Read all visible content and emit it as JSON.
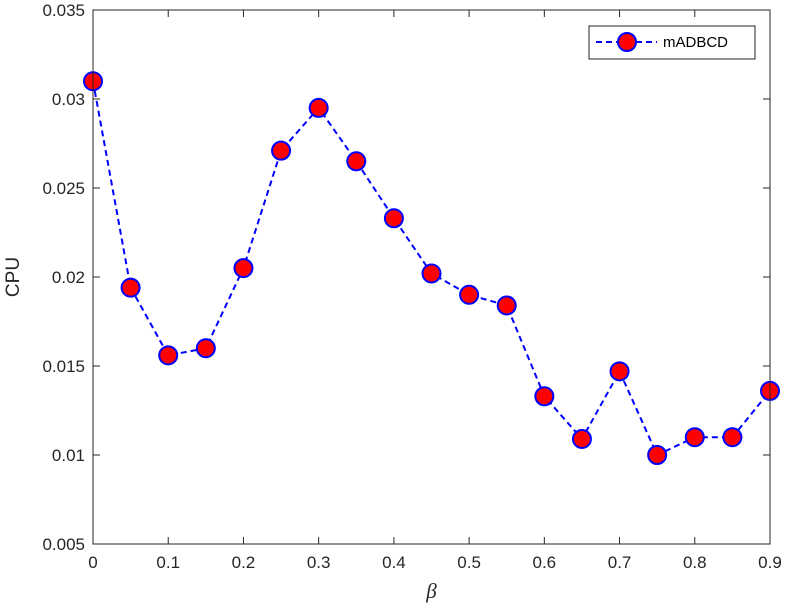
{
  "chart_data": {
    "type": "line",
    "title": "",
    "xlabel": "β",
    "ylabel": "CPU",
    "xlim": [
      0,
      0.9
    ],
    "ylim": [
      0.005,
      0.035
    ],
    "xticks": [
      0,
      0.1,
      0.2,
      0.3,
      0.4,
      0.5,
      0.6,
      0.7,
      0.8,
      0.9
    ],
    "xtick_labels": [
      "0",
      "0.1",
      "0.2",
      "0.3",
      "0.4",
      "0.5",
      "0.6",
      "0.7",
      "0.8",
      "0.9"
    ],
    "yticks": [
      0.005,
      0.01,
      0.015,
      0.02,
      0.025,
      0.03,
      0.035
    ],
    "ytick_labels": [
      "0.005",
      "0.01",
      "0.015",
      "0.02",
      "0.025",
      "0.03",
      "0.035"
    ],
    "grid": false,
    "legend_position": "top-right",
    "series": [
      {
        "name": "mADBCD",
        "line_style": "dashed",
        "line_color": "#0000ff",
        "marker": "circle",
        "marker_face_color": "#ff0000",
        "marker_edge_color": "#0000ff",
        "x": [
          0,
          0.05,
          0.1,
          0.15,
          0.2,
          0.25,
          0.3,
          0.35,
          0.4,
          0.45,
          0.5,
          0.55,
          0.6,
          0.65,
          0.7,
          0.75,
          0.8,
          0.85,
          0.9
        ],
        "y": [
          0.031,
          0.0194,
          0.0156,
          0.016,
          0.0205,
          0.0271,
          0.0295,
          0.0265,
          0.0233,
          0.0202,
          0.019,
          0.0184,
          0.0133,
          0.0109,
          0.0147,
          0.01,
          0.011,
          0.011,
          0.0136
        ]
      }
    ]
  }
}
